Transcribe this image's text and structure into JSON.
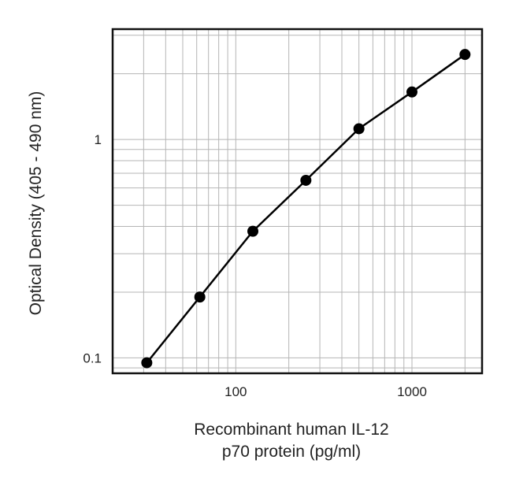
{
  "chart_data": {
    "type": "line",
    "title": "",
    "xlabel": [
      "Recombinant human IL-12",
      "p70 protein (pg/ml)"
    ],
    "ylabel": "Optical Density (405 - 490 nm)",
    "x_scale": "log",
    "y_scale": "log",
    "xlim": [
      20,
      2500
    ],
    "ylim": [
      0.085,
      3.2
    ],
    "x_ticks": [
      {
        "value": 100,
        "label": "100"
      },
      {
        "value": 1000,
        "label": "1000"
      }
    ],
    "y_ticks": [
      {
        "value": 0.1,
        "label": "0.1"
      },
      {
        "value": 1,
        "label": "1"
      }
    ],
    "grid": true,
    "series": [
      {
        "x": [
          31.25,
          62.5,
          125,
          250,
          500,
          1000,
          2000
        ],
        "y": [
          0.095,
          0.19,
          0.38,
          0.65,
          1.12,
          1.65,
          2.45
        ]
      }
    ]
  }
}
